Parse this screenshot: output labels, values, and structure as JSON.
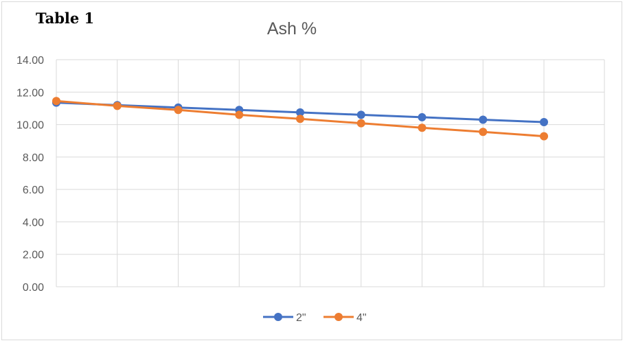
{
  "table_label": "Table 1",
  "chart_data": {
    "type": "line",
    "title": "Ash %",
    "xlabel": "",
    "ylabel": "",
    "ylim": [
      0,
      14
    ],
    "yticks": [
      "0.00",
      "2.00",
      "4.00",
      "6.00",
      "8.00",
      "10.00",
      "12.00",
      "14.00"
    ],
    "x": [
      1,
      2,
      3,
      4,
      5,
      6,
      7,
      8,
      9
    ],
    "grid": true,
    "legend_position": "bottom",
    "series": [
      {
        "name": "2\"",
        "color": "#4472c4",
        "values": [
          11.35,
          11.2,
          11.05,
          10.9,
          10.75,
          10.6,
          10.45,
          10.3,
          10.15
        ]
      },
      {
        "name": "4\"",
        "color": "#ed7d31",
        "values": [
          11.45,
          11.15,
          10.9,
          10.6,
          10.35,
          10.08,
          9.8,
          9.55,
          9.28
        ]
      }
    ]
  }
}
